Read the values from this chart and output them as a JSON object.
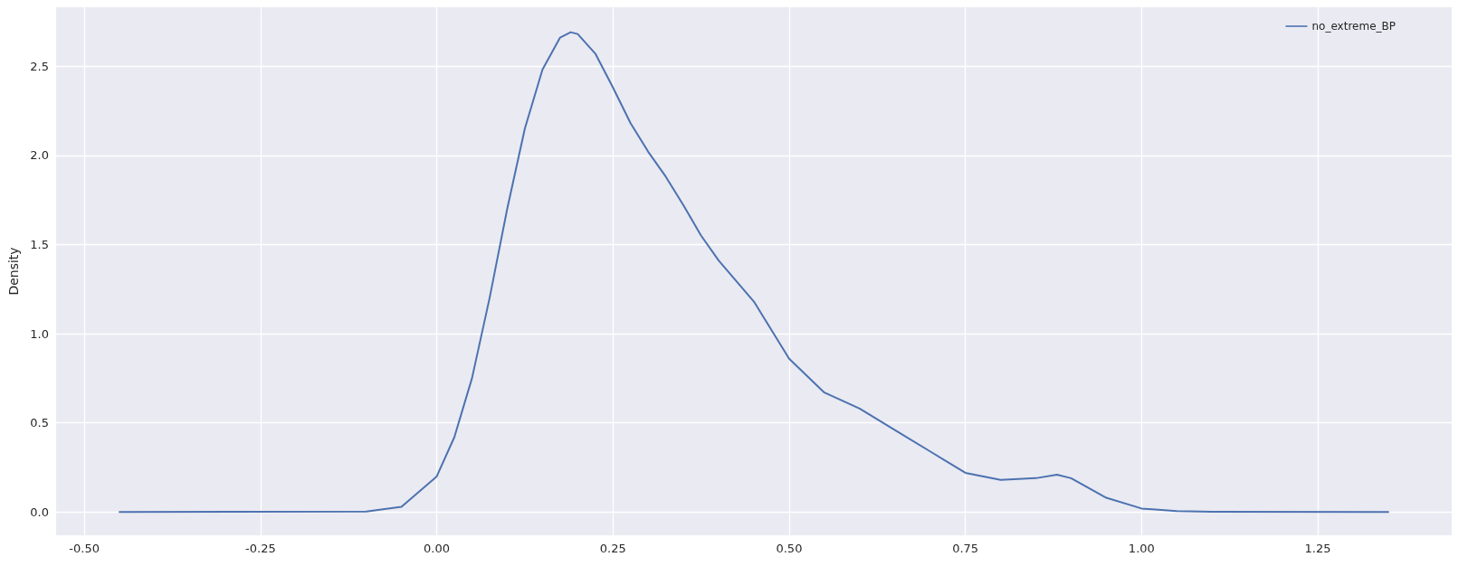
{
  "chart_data": {
    "type": "line",
    "ylabel": "Density",
    "series": [
      {
        "name": "no_extreme_BP",
        "color": "#4c72b0",
        "x": [
          -0.45,
          -0.1,
          -0.05,
          0.0,
          0.025,
          0.05,
          0.075,
          0.1,
          0.125,
          0.15,
          0.175,
          0.19,
          0.2,
          0.225,
          0.25,
          0.275,
          0.3,
          0.325,
          0.35,
          0.375,
          0.4,
          0.45,
          0.5,
          0.55,
          0.6,
          0.65,
          0.7,
          0.75,
          0.8,
          0.85,
          0.88,
          0.9,
          0.95,
          1.0,
          1.05,
          1.1,
          1.35
        ],
        "values": [
          0,
          0.003,
          0.03,
          0.2,
          0.42,
          0.75,
          1.2,
          1.7,
          2.15,
          2.48,
          2.66,
          2.69,
          2.68,
          2.57,
          2.38,
          2.18,
          2.02,
          1.88,
          1.72,
          1.55,
          1.41,
          1.18,
          0.86,
          0.67,
          0.58,
          0.46,
          0.34,
          0.22,
          0.18,
          0.19,
          0.21,
          0.19,
          0.08,
          0.02,
          0.005,
          0.002,
          0
        ]
      }
    ],
    "xlim": [
      -0.54,
      1.44
    ],
    "ylim": [
      -0.13,
      2.83
    ],
    "xticks": [
      {
        "value": -0.5,
        "label": "-0.50"
      },
      {
        "value": -0.25,
        "label": "-0.25"
      },
      {
        "value": 0,
        "label": "0.00"
      },
      {
        "value": 0.25,
        "label": "0.25"
      },
      {
        "value": 0.5,
        "label": "0.50"
      },
      {
        "value": 0.75,
        "label": "0.75"
      },
      {
        "value": 1,
        "label": "1.00"
      },
      {
        "value": 1.25,
        "label": "1.25"
      }
    ],
    "yticks": [
      {
        "value": 0,
        "label": "0.0"
      },
      {
        "value": 0.5,
        "label": "0.5"
      },
      {
        "value": 1,
        "label": "1.0"
      },
      {
        "value": 1.5,
        "label": "1.5"
      },
      {
        "value": 2,
        "label": "2.0"
      },
      {
        "value": 2.5,
        "label": "2.5"
      }
    ],
    "grid": true,
    "legend": "top right",
    "marker": "none",
    "line_style": "solid"
  }
}
